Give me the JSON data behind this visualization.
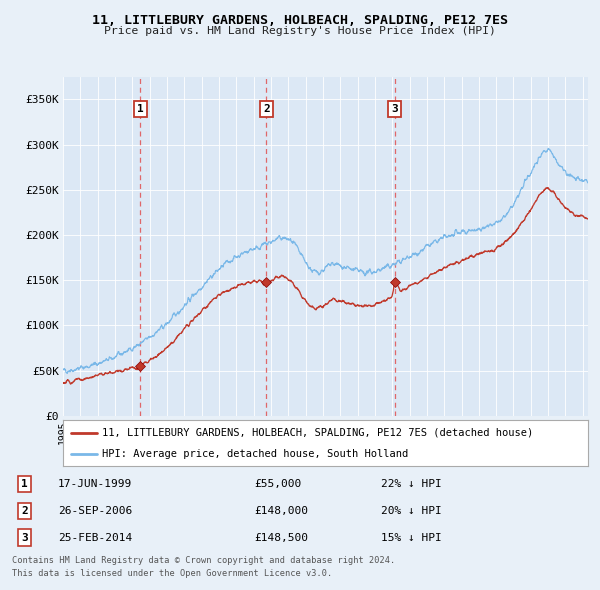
{
  "title": "11, LITTLEBURY GARDENS, HOLBEACH, SPALDING, PE12 7ES",
  "subtitle": "Price paid vs. HM Land Registry's House Price Index (HPI)",
  "background_color": "#e8f0f8",
  "plot_bg_color": "#dce8f5",
  "legend_label_red": "11, LITTLEBURY GARDENS, HOLBEACH, SPALDING, PE12 7ES (detached house)",
  "legend_label_blue": "HPI: Average price, detached house, South Holland",
  "footer1": "Contains HM Land Registry data © Crown copyright and database right 2024.",
  "footer2": "This data is licensed under the Open Government Licence v3.0.",
  "transactions": [
    {
      "num": 1,
      "date": "17-JUN-1999",
      "price": "£55,000",
      "pct": "22% ↓ HPI",
      "year": 1999.46,
      "value": 55000
    },
    {
      "num": 2,
      "date": "26-SEP-2006",
      "price": "£148,000",
      "pct": "20% ↓ HPI",
      "year": 2006.74,
      "value": 148000
    },
    {
      "num": 3,
      "date": "25-FEB-2014",
      "price": "£148,500",
      "pct": "15% ↓ HPI",
      "year": 2014.15,
      "value": 148500
    }
  ],
  "ylim": [
    0,
    375000
  ],
  "yticks": [
    0,
    50000,
    100000,
    150000,
    200000,
    250000,
    300000,
    350000
  ],
  "ytick_labels": [
    "£0",
    "£50K",
    "£100K",
    "£150K",
    "£200K",
    "£250K",
    "£300K",
    "£350K"
  ],
  "xlim_start": 1995.0,
  "xlim_end": 2025.3,
  "hpi_anchors_x": [
    1995.0,
    1995.5,
    1996.0,
    1996.5,
    1997.0,
    1997.5,
    1998.0,
    1998.5,
    1999.0,
    1999.5,
    2000.0,
    2000.5,
    2001.0,
    2001.5,
    2002.0,
    2002.5,
    2003.0,
    2003.5,
    2004.0,
    2004.5,
    2005.0,
    2005.5,
    2006.0,
    2006.5,
    2007.0,
    2007.3,
    2007.6,
    2008.0,
    2008.3,
    2008.6,
    2009.0,
    2009.3,
    2009.6,
    2010.0,
    2010.3,
    2010.6,
    2011.0,
    2011.5,
    2012.0,
    2012.5,
    2013.0,
    2013.5,
    2014.0,
    2014.5,
    2015.0,
    2015.5,
    2016.0,
    2016.5,
    2017.0,
    2017.5,
    2018.0,
    2018.5,
    2019.0,
    2019.5,
    2020.0,
    2020.5,
    2021.0,
    2021.5,
    2022.0,
    2022.3,
    2022.6,
    2023.0,
    2023.3,
    2023.6,
    2024.0,
    2024.3,
    2024.6,
    2025.0,
    2025.3
  ],
  "hpi_anchors_y": [
    50000,
    51000,
    53000,
    55000,
    58000,
    61000,
    65000,
    70000,
    75000,
    80000,
    87000,
    94000,
    102000,
    112000,
    122000,
    133000,
    143000,
    153000,
    162000,
    170000,
    176000,
    181000,
    185000,
    188000,
    192000,
    195000,
    197000,
    195000,
    191000,
    182000,
    170000,
    162000,
    158000,
    161000,
    165000,
    168000,
    166000,
    163000,
    160000,
    158000,
    160000,
    163000,
    167000,
    171000,
    176000,
    181000,
    187000,
    192000,
    197000,
    200000,
    203000,
    205000,
    207000,
    209000,
    212000,
    220000,
    233000,
    252000,
    270000,
    280000,
    290000,
    295000,
    288000,
    278000,
    270000,
    265000,
    262000,
    260000,
    258000
  ],
  "red_anchors_x": [
    1995.0,
    1995.5,
    1996.0,
    1996.5,
    1997.0,
    1997.5,
    1998.0,
    1998.5,
    1999.0,
    1999.46,
    1999.7,
    2000.0,
    2000.5,
    2001.0,
    2001.5,
    2002.0,
    2002.5,
    2003.0,
    2003.5,
    2004.0,
    2004.5,
    2005.0,
    2005.5,
    2006.0,
    2006.5,
    2006.74,
    2007.0,
    2007.3,
    2007.6,
    2008.0,
    2008.3,
    2008.6,
    2009.0,
    2009.3,
    2009.6,
    2010.0,
    2010.3,
    2010.6,
    2011.0,
    2011.5,
    2012.0,
    2012.5,
    2013.0,
    2013.5,
    2014.0,
    2014.15,
    2014.5,
    2015.0,
    2015.5,
    2016.0,
    2016.5,
    2017.0,
    2017.5,
    2018.0,
    2018.5,
    2019.0,
    2019.5,
    2020.0,
    2020.5,
    2021.0,
    2021.5,
    2022.0,
    2022.3,
    2022.6,
    2023.0,
    2023.3,
    2023.6,
    2024.0,
    2024.3,
    2024.6,
    2025.0,
    2025.3
  ],
  "red_anchors_y": [
    37000,
    38000,
    40000,
    42000,
    45000,
    47000,
    49000,
    51000,
    53000,
    55000,
    58000,
    62000,
    68000,
    76000,
    85000,
    96000,
    106000,
    116000,
    125000,
    133000,
    139000,
    143000,
    146000,
    148000,
    149000,
    148000,
    150000,
    153000,
    155000,
    152000,
    146000,
    138000,
    127000,
    122000,
    119000,
    122000,
    126000,
    129000,
    127000,
    124000,
    122000,
    121000,
    123000,
    127000,
    132000,
    148500,
    138000,
    143000,
    148000,
    153000,
    158000,
    163000,
    167000,
    172000,
    176000,
    179000,
    182000,
    185000,
    192000,
    202000,
    215000,
    228000,
    238000,
    247000,
    252000,
    248000,
    238000,
    230000,
    225000,
    222000,
    220000,
    218000
  ]
}
